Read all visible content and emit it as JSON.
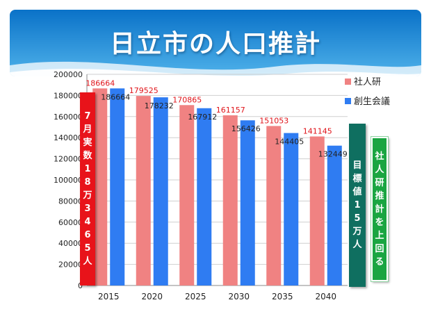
{
  "title": "日立市の人口推計",
  "colors": {
    "series1": "#f08282",
    "series2": "#2f7cf2",
    "label_series1": "#e0141a",
    "label_series2": "#222222",
    "banner_top": "#0c7ed1",
    "banner_bottom": "#6cc1ee"
  },
  "left_note": "7月実数18万3465人",
  "target_note": "目標値15万人",
  "above_note": "社人研推計を上回る",
  "chart_data": {
    "type": "bar",
    "categories": [
      "2015",
      "2020",
      "2025",
      "2030",
      "2035",
      "2040"
    ],
    "series": [
      {
        "name": "社人研",
        "values": [
          186664,
          179525,
          170865,
          161157,
          151053,
          141145
        ],
        "labels": [
          "186664",
          "179525",
          "170865",
          "161157",
          "151053",
          "141145"
        ]
      },
      {
        "name": "創生会議",
        "values": [
          186664,
          178232,
          167912,
          156426,
          144405,
          132449
        ],
        "labels": [
          "186664",
          "178232",
          "167912",
          "156426",
          "144405",
          "132449"
        ]
      }
    ],
    "ylim": [
      0,
      200000
    ],
    "yticks": [
      "0",
      "20000",
      "40000",
      "60000",
      "80000",
      "100000",
      "120000",
      "140000",
      "160000",
      "180000",
      "200000"
    ],
    "grid": true,
    "legend": "right"
  }
}
